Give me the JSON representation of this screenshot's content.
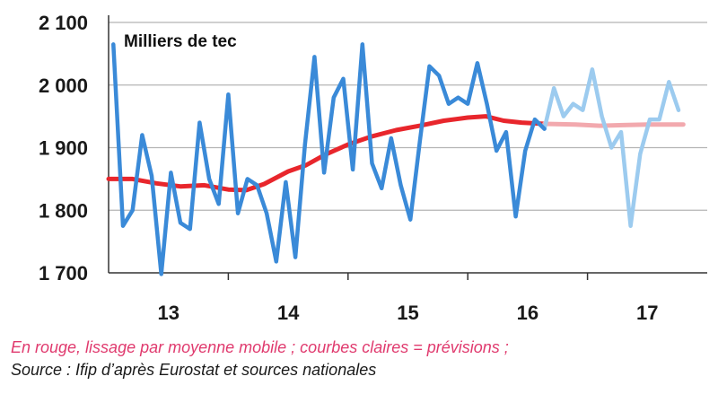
{
  "chart_data": {
    "type": "line",
    "unit_label": "Milliers de tec",
    "y_ticks": [
      1700,
      1800,
      1900,
      2000,
      2100
    ],
    "y_tick_labels": [
      "1 700",
      "1 800",
      "1 900",
      "2 000",
      "2 100"
    ],
    "ylim": [
      1700,
      2100
    ],
    "xlim": [
      2012.5,
      2017.5
    ],
    "x_tick_labels": [
      {
        "label": "13",
        "x": 2013.0
      },
      {
        "label": "14",
        "x": 2014.0
      },
      {
        "label": "15",
        "x": 2015.0
      },
      {
        "label": "16",
        "x": 2016.0
      },
      {
        "label": "17",
        "x": 2017.0
      }
    ],
    "grid": true,
    "series": [
      {
        "kind": "raw",
        "color": "#3a8ad8",
        "points": [
          [
            2012.54,
            2065
          ],
          [
            2012.62,
            1775
          ],
          [
            2012.7,
            1800
          ],
          [
            2012.78,
            1920
          ],
          [
            2012.86,
            1855
          ],
          [
            2012.94,
            1698
          ],
          [
            2013.02,
            1860
          ],
          [
            2013.1,
            1780
          ],
          [
            2013.18,
            1770
          ],
          [
            2013.26,
            1940
          ],
          [
            2013.34,
            1850
          ],
          [
            2013.42,
            1810
          ],
          [
            2013.5,
            1985
          ],
          [
            2013.58,
            1795
          ],
          [
            2013.66,
            1850
          ],
          [
            2013.74,
            1840
          ],
          [
            2013.82,
            1795
          ],
          [
            2013.9,
            1718
          ],
          [
            2013.98,
            1845
          ],
          [
            2014.06,
            1725
          ],
          [
            2014.14,
            1905
          ],
          [
            2014.22,
            2045
          ],
          [
            2014.3,
            1860
          ],
          [
            2014.38,
            1980
          ],
          [
            2014.46,
            2010
          ],
          [
            2014.54,
            1865
          ],
          [
            2014.62,
            2065
          ],
          [
            2014.7,
            1875
          ],
          [
            2014.78,
            1835
          ],
          [
            2014.86,
            1915
          ],
          [
            2014.94,
            1840
          ],
          [
            2015.02,
            1785
          ],
          [
            2015.1,
            1910
          ],
          [
            2015.18,
            2030
          ],
          [
            2015.26,
            2015
          ],
          [
            2015.34,
            1970
          ],
          [
            2015.42,
            1980
          ],
          [
            2015.5,
            1970
          ],
          [
            2015.58,
            2035
          ],
          [
            2015.66,
            1970
          ],
          [
            2015.74,
            1895
          ],
          [
            2015.82,
            1925
          ],
          [
            2015.9,
            1790
          ],
          [
            2015.98,
            1895
          ],
          [
            2016.06,
            1945
          ],
          [
            2016.14,
            1930
          ]
        ]
      },
      {
        "kind": "raw_forecast",
        "color": "#9ccbef",
        "points": [
          [
            2016.14,
            1930
          ],
          [
            2016.22,
            1995
          ],
          [
            2016.3,
            1950
          ],
          [
            2016.38,
            1970
          ],
          [
            2016.46,
            1960
          ],
          [
            2016.54,
            2025
          ],
          [
            2016.62,
            1950
          ],
          [
            2016.7,
            1900
          ],
          [
            2016.78,
            1925
          ],
          [
            2016.86,
            1775
          ],
          [
            2016.94,
            1890
          ],
          [
            2017.02,
            1945
          ],
          [
            2017.1,
            1945
          ],
          [
            2017.18,
            2005
          ],
          [
            2017.26,
            1960
          ]
        ]
      },
      {
        "kind": "moving_average",
        "color": "#e8262c",
        "points": [
          [
            2012.5,
            1850
          ],
          [
            2012.7,
            1850
          ],
          [
            2012.9,
            1843
          ],
          [
            2013.1,
            1838
          ],
          [
            2013.3,
            1840
          ],
          [
            2013.5,
            1833
          ],
          [
            2013.65,
            1832
          ],
          [
            2013.8,
            1842
          ],
          [
            2014.0,
            1862
          ],
          [
            2014.15,
            1872
          ],
          [
            2014.3,
            1888
          ],
          [
            2014.5,
            1905
          ],
          [
            2014.7,
            1918
          ],
          [
            2014.9,
            1928
          ],
          [
            2015.1,
            1935
          ],
          [
            2015.3,
            1943
          ],
          [
            2015.5,
            1948
          ],
          [
            2015.65,
            1950
          ],
          [
            2015.8,
            1943
          ],
          [
            2015.95,
            1940
          ],
          [
            2016.14,
            1938
          ]
        ]
      },
      {
        "kind": "moving_average_forecast",
        "color": "#f2a9ae",
        "points": [
          [
            2016.14,
            1938
          ],
          [
            2016.4,
            1937
          ],
          [
            2016.6,
            1935
          ],
          [
            2016.8,
            1936
          ],
          [
            2017.0,
            1937
          ],
          [
            2017.3,
            1937
          ]
        ]
      }
    ]
  },
  "footnote": {
    "line1": "En rouge, lissage par moyenne mobile ; courbes claires = prévisions ;",
    "line1_color": "#e03a6e",
    "line2": "Source : Ifip d’après Eurostat et sources nationales",
    "line2_color": "#1a1a1a"
  }
}
